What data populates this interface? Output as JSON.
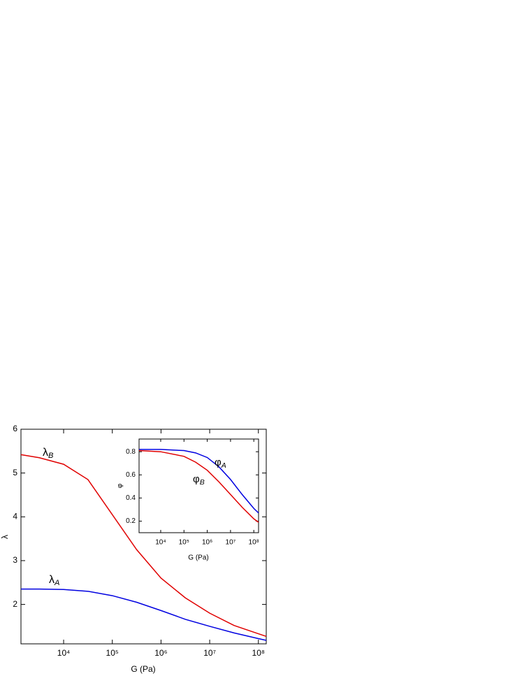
{
  "chart_data": [
    {
      "type": "line",
      "x_label": "G (Pa)",
      "y_label": "λ",
      "x": [
        1330,
        3162,
        10000,
        31623,
        100000,
        316228,
        1000000,
        3162278,
        10000000,
        31622777,
        100000000,
        145000000
      ],
      "series": [
        {
          "color": "#e00000",
          "values": [
            5.42,
            5.35,
            5.2,
            4.85,
            4.05,
            3.25,
            2.6,
            2.15,
            1.8,
            1.52,
            1.33,
            1.27
          ]
        },
        {
          "color": "#0000e0",
          "values": [
            2.35,
            2.35,
            2.34,
            2.3,
            2.2,
            2.05,
            1.86,
            1.66,
            1.5,
            1.35,
            1.22,
            1.18
          ]
        }
      ],
      "annotations": [
        {
          "symbol": "λ",
          "subscript": "B"
        },
        {
          "symbol": "λ",
          "subscript": "A"
        }
      ],
      "x_log": true,
      "xlim": [
        1330,
        145000000
      ],
      "ylim": [
        1.1,
        6
      ],
      "xticks": [
        {
          "value": 10000,
          "label": "10⁴"
        },
        {
          "value": 100000,
          "label": "10⁵"
        },
        {
          "value": 1000000,
          "label": "10⁶"
        },
        {
          "value": 10000000,
          "label": "10⁷"
        },
        {
          "value": 100000000,
          "label": "10⁸"
        }
      ],
      "yticks": [
        2,
        3,
        4,
        5,
        6
      ]
    },
    {
      "type": "line",
      "x_label": "G (Pa)",
      "y_label": "φ",
      "x": [
        1175,
        10000,
        100000,
        316228,
        1000000,
        3162278,
        10000000,
        31622777,
        100000000,
        160000000
      ],
      "series": [
        {
          "color": "#0000e0",
          "values": [
            0.82,
            0.82,
            0.81,
            0.79,
            0.75,
            0.67,
            0.56,
            0.43,
            0.31,
            0.27
          ]
        },
        {
          "color": "#e00000",
          "values": [
            0.81,
            0.8,
            0.76,
            0.71,
            0.64,
            0.54,
            0.43,
            0.32,
            0.22,
            0.19
          ]
        }
      ],
      "annotations": [
        {
          "symbol": "φ",
          "subscript": "A"
        },
        {
          "symbol": "φ",
          "subscript": "B"
        }
      ],
      "x_log": true,
      "xlim": [
        1175,
        160000000
      ],
      "ylim": [
        0.1,
        0.91
      ],
      "xticks": [
        {
          "value": 10000,
          "label": "10⁴"
        },
        {
          "value": 100000,
          "label": "10⁵"
        },
        {
          "value": 1000000,
          "label": "10⁶"
        },
        {
          "value": 10000000,
          "label": "10⁷"
        },
        {
          "value": 100000000,
          "label": "10⁸"
        }
      ],
      "yticks": [
        {
          "value": 0.2,
          "label": "0.2"
        },
        {
          "value": 0.4,
          "label": "0.4"
        },
        {
          "value": 0.6,
          "label": "0.6"
        },
        {
          "value": 0.8,
          "label": "0.8"
        }
      ]
    }
  ]
}
